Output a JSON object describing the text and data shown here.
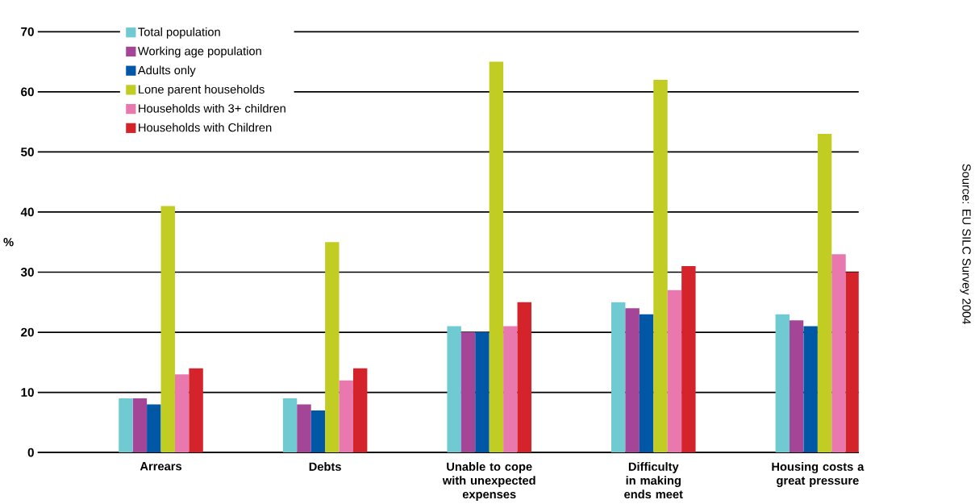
{
  "chart_data": {
    "type": "bar",
    "ylabel": "%",
    "categories": [
      "Arrears",
      "Debts",
      "Unable to cope with unexpected expenses",
      "Difficulty in making ends meet",
      "Housing costs a great pressure"
    ],
    "series": [
      {
        "name": "Total population",
        "color": "#6fcad2",
        "values": [
          9,
          9,
          21,
          25,
          23
        ]
      },
      {
        "name": "Working age population",
        "color": "#a44598",
        "values": [
          9,
          8,
          20,
          24,
          22
        ]
      },
      {
        "name": "Adults only",
        "color": "#0057a6",
        "values": [
          8,
          7,
          20,
          23,
          21
        ]
      },
      {
        "name": "Lone parent households",
        "color": "#c2cd23",
        "values": [
          41,
          35,
          65,
          62,
          53
        ]
      },
      {
        "name": "Households with 3+ children",
        "color": "#e878ae",
        "values": [
          13,
          12,
          21,
          27,
          33
        ]
      },
      {
        "name": "Households with Children",
        "color": "#d4232b",
        "values": [
          14,
          14,
          25,
          31,
          30
        ]
      }
    ],
    "ylim": [
      0,
      70
    ],
    "yticks": [
      0,
      10,
      20,
      30,
      40,
      50,
      60,
      70
    ],
    "grid": "y",
    "legend": "top left",
    "annotations": [
      "Source: EU SILC Survey 2004"
    ]
  }
}
